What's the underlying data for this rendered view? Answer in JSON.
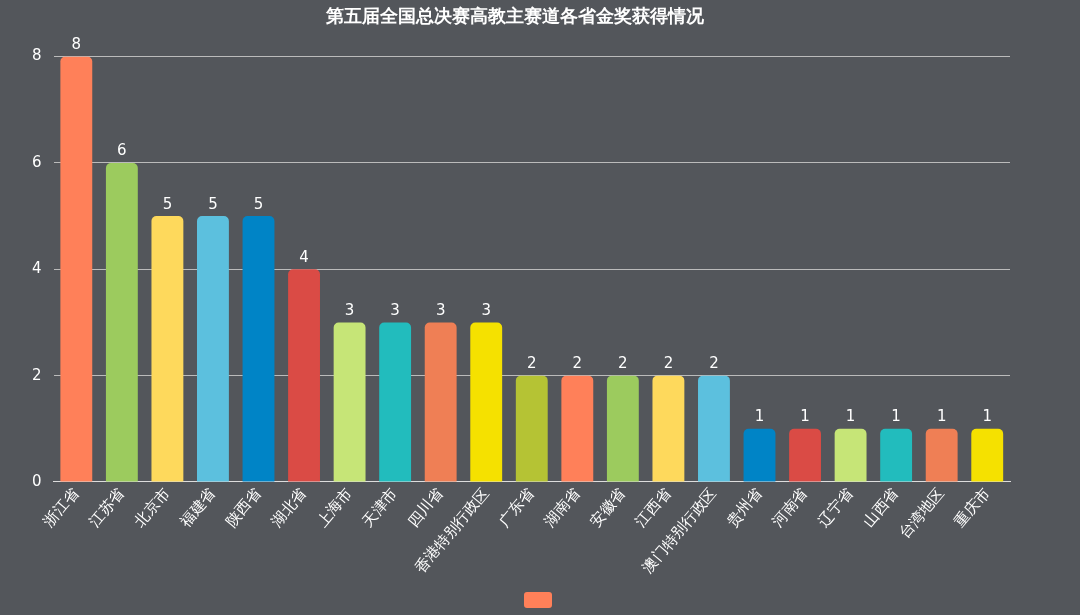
{
  "chart_data": {
    "type": "bar",
    "title": "第五届全国总决赛高教主赛道各省金奖获得情况",
    "categories": [
      "浙江省",
      "江苏省",
      "北京市",
      "福建省",
      "陕西省",
      "湖北省",
      "上海市",
      "天津市",
      "四川省",
      "香港特别行政区",
      "广东省",
      "湖南省",
      "安徽省",
      "江西省",
      "澳门特别行政区",
      "贵州省",
      "河南省",
      "辽宁省",
      "山西省",
      "台湾地区",
      "重庆市"
    ],
    "values": [
      8,
      6,
      5,
      5,
      5,
      4,
      3,
      3,
      3,
      3,
      2,
      2,
      2,
      2,
      2,
      1,
      1,
      1,
      1,
      1,
      1
    ],
    "colors": [
      "#ff8059",
      "#9ccb5e",
      "#fed95c",
      "#5cc0de",
      "#0084c6",
      "#da4b45",
      "#c6e577",
      "#22bcbd",
      "#ef7f55",
      "#f5e100",
      "#b5c334",
      "#ff8059",
      "#9ccb5e",
      "#fed95c",
      "#5cc0de",
      "#0084c6",
      "#da4b45",
      "#c6e577",
      "#22bcbd",
      "#ef7f55",
      "#f5e100"
    ],
    "ylim": [
      0,
      8
    ],
    "yticks": [
      0,
      2,
      4,
      6,
      8
    ],
    "grid": "y",
    "data_labels": true
  }
}
